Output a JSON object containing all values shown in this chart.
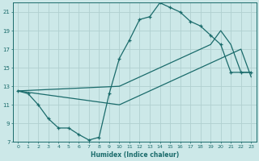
{
  "xlabel": "Humidex (Indice chaleur)",
  "bg_color": "#cce8e8",
  "grid_color": "#b0d0d0",
  "line_color": "#1a6b6b",
  "xlim": [
    -0.5,
    23.5
  ],
  "ylim": [
    7,
    22
  ],
  "yticks": [
    7,
    9,
    11,
    13,
    15,
    17,
    19,
    21
  ],
  "xticks": [
    0,
    1,
    2,
    3,
    4,
    5,
    6,
    7,
    8,
    9,
    10,
    11,
    12,
    13,
    14,
    15,
    16,
    17,
    18,
    19,
    20,
    21,
    22,
    23
  ],
  "series1_x": [
    0,
    1,
    2,
    3,
    4,
    5,
    6,
    7,
    8,
    9,
    10,
    11,
    12,
    13,
    14,
    15,
    16,
    17,
    18,
    19,
    20,
    21,
    22,
    23
  ],
  "series1_y": [
    12.5,
    12.2,
    11.0,
    9.5,
    8.5,
    8.5,
    7.8,
    7.2,
    7.5,
    12.2,
    16.0,
    18.0,
    20.2,
    20.5,
    22.0,
    21.5,
    21.0,
    20.0,
    19.5,
    18.5,
    17.5,
    14.5,
    14.5,
    14.5
  ],
  "series2_x": [
    0,
    10,
    11,
    12,
    13,
    14,
    15,
    16,
    17,
    18,
    19,
    20,
    21,
    22,
    23
  ],
  "series2_y": [
    12.5,
    13.0,
    13.5,
    14.0,
    14.5,
    15.0,
    15.5,
    16.0,
    16.5,
    17.0,
    17.5,
    19.0,
    17.5,
    14.5,
    14.5
  ],
  "series3_x": [
    0,
    10,
    11,
    12,
    13,
    14,
    15,
    16,
    17,
    18,
    19,
    20,
    21,
    22,
    23
  ],
  "series3_y": [
    12.5,
    11.0,
    11.5,
    12.0,
    12.5,
    13.0,
    13.5,
    14.0,
    14.5,
    15.0,
    15.5,
    16.0,
    16.5,
    17.0,
    14.0
  ]
}
